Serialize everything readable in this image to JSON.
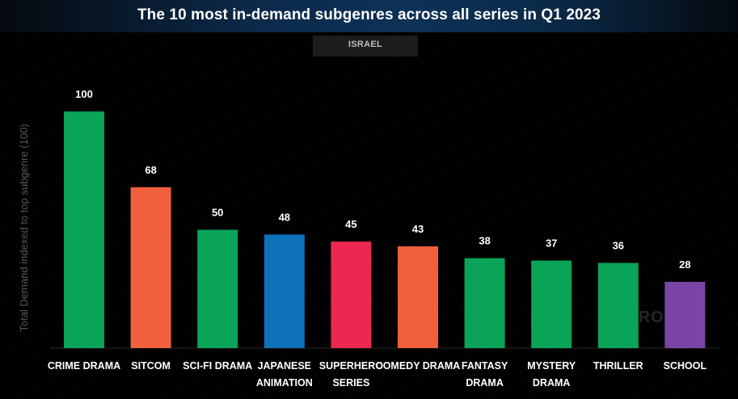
{
  "title": "The 10 most in-demand subgenres across all series in Q1 2023",
  "region_tab": "ISRAEL",
  "watermark": "PARROT",
  "colors": {
    "green": "#0aa458",
    "orange": "#f1603c",
    "blue": "#0e72b8",
    "red": "#ec2850",
    "purple": "#7b45a6"
  },
  "chart_data": {
    "type": "bar",
    "title": "The 10 most in-demand subgenres across all series in Q1 2023",
    "xlabel": "",
    "ylabel": "Total Demand indexed to top subgenre (100)",
    "ylim": [
      0,
      100
    ],
    "grid": false,
    "legend": "none",
    "categories": [
      "CRIME DRAMA",
      "SITCOM",
      "SCI-FI DRAMA",
      "JAPANESE ANIMATION",
      "SUPERHERO SERIES",
      "COMEDY DRAMA",
      "FANTASY DRAMA",
      "MYSTERY DRAMA",
      "THRILLER",
      "SCHOOL"
    ],
    "values": [
      100,
      68,
      50,
      48,
      45,
      43,
      38,
      37,
      36,
      28
    ],
    "bar_colors": [
      "#0aa458",
      "#f1603c",
      "#0aa458",
      "#0e72b8",
      "#ec2850",
      "#f1603c",
      "#0aa458",
      "#0aa458",
      "#0aa458",
      "#7b45a6"
    ]
  }
}
